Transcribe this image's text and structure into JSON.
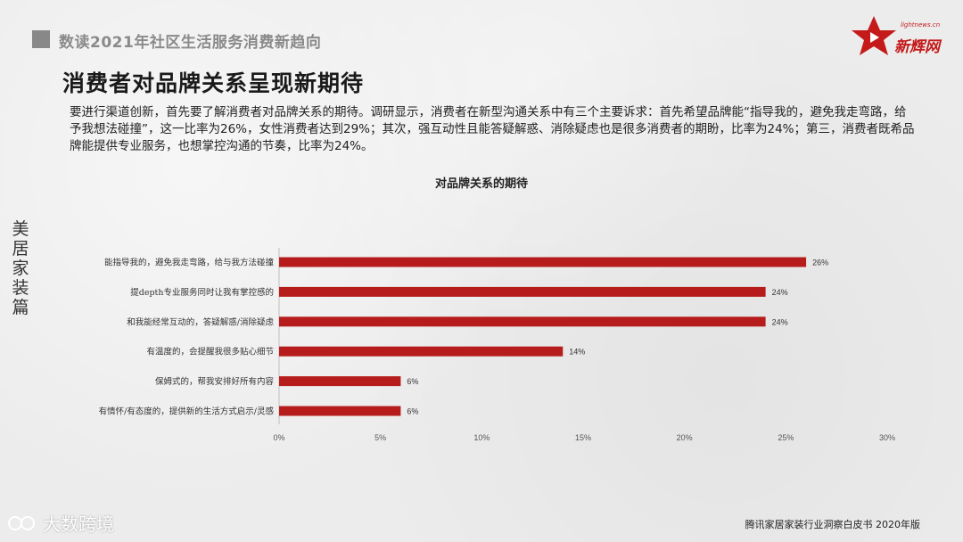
{
  "header": {
    "text": "数读2021年社区生活服务消费新趋向"
  },
  "logo": {
    "small": "lightnews.cn",
    "text": "新辉网"
  },
  "title": "消费者对品牌关系呈现新期待",
  "intro": "要进行渠道创新，首先要了解消费者对品牌关系的期待。调研显示，消费者在新型沟通关系中有三个主要诉求：首先希望品牌能“指导我的，避免我走弯路，给予我想法碰撞”，这一比率为26%，女性消费者达到29%；其次，强互动性且能答疑解惑、消除疑虑也是很多消费者的期盼，比率为24%；第三，消费者既希品牌能提供专业服务，也想掌控沟通的节奏，比率为24%。",
  "side_label": "美居家装篇",
  "footer": "腾讯家居家装行业洞察白皮书 2020年版",
  "watermark": {
    "text": "大数跨境"
  },
  "colors": {
    "bar": "#b71c1c",
    "axis": "#bfbfbf",
    "brand": "#c41a1a"
  },
  "chart_data": {
    "type": "bar",
    "orientation": "horizontal",
    "title": "对品牌关系的期待",
    "categories": [
      "能指导我的，避免我走弯路，给与我方法碰撞",
      "提depth专业服务同时让我有掌控感的",
      "和我能经常互动的，答疑解惑/消除疑虑",
      "有温度的，会提醒我很多贴心细节",
      "保姆式的，帮我安排好所有内容",
      "有情怀/有态度的，提供新的生活方式启示/灵感"
    ],
    "values": [
      26,
      24,
      24,
      14,
      6,
      6
    ],
    "value_labels": [
      "26%",
      "24%",
      "24%",
      "14%",
      "6%",
      "6%"
    ],
    "xlim": [
      0,
      30
    ],
    "x_ticks": [
      "0%",
      "5%",
      "10%",
      "15%",
      "20%",
      "25%",
      "30%"
    ],
    "grid": false
  }
}
